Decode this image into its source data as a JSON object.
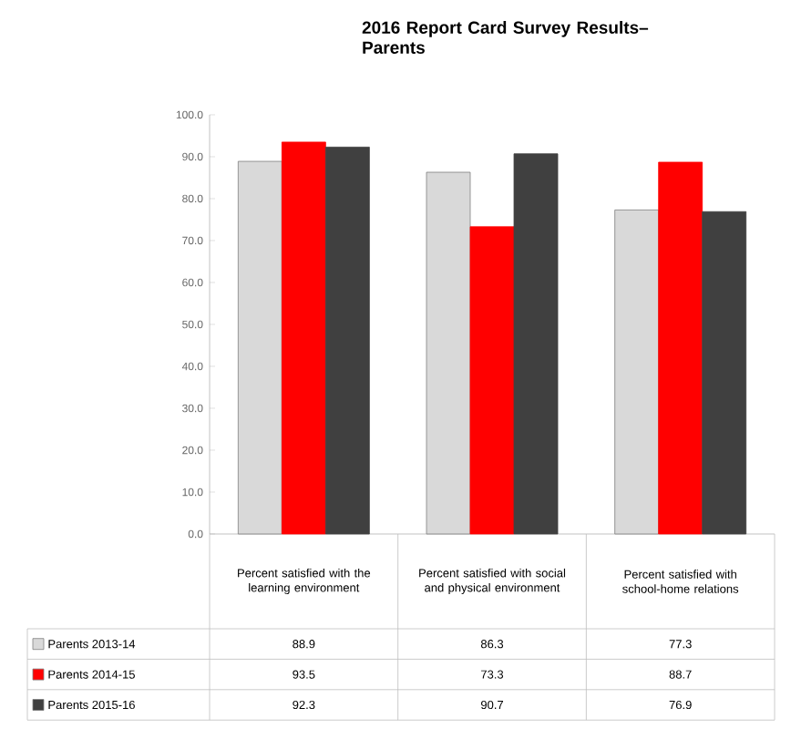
{
  "chart_data": {
    "type": "bar",
    "title": "2016  Report Card Survey Results–Parents",
    "categories": [
      "Percent satisfied with the learning environment",
      "Percent satisfied with social and physical environment",
      "Percent satisfied with school-home relations"
    ],
    "series": [
      {
        "name": "Parents 2013-14",
        "color": "#d9d9d9",
        "values": [
          88.9,
          86.3,
          77.3
        ]
      },
      {
        "name": "Parents 2014-15",
        "color": "#ff0000",
        "values": [
          93.5,
          73.3,
          88.7
        ]
      },
      {
        "name": "Parents 2015-16",
        "color": "#404040",
        "values": [
          92.3,
          90.7,
          76.9
        ]
      }
    ],
    "ylim": [
      0,
      100
    ],
    "yticks": [
      {
        "value": 0,
        "label": "0.0"
      },
      {
        "value": 10,
        "label": "10.0"
      },
      {
        "value": 20,
        "label": "20.0"
      },
      {
        "value": 30,
        "label": "30.0"
      },
      {
        "value": 40,
        "label": "40.0"
      },
      {
        "value": 50,
        "label": "50.0"
      },
      {
        "value": 60,
        "label": "60.0"
      },
      {
        "value": 70,
        "label": "70.0"
      },
      {
        "value": 80,
        "label": "80.0"
      },
      {
        "value": 90,
        "label": "90.0"
      },
      {
        "value": 100,
        "label": "100.0"
      }
    ],
    "data_labels": true,
    "legend": "bottom"
  }
}
